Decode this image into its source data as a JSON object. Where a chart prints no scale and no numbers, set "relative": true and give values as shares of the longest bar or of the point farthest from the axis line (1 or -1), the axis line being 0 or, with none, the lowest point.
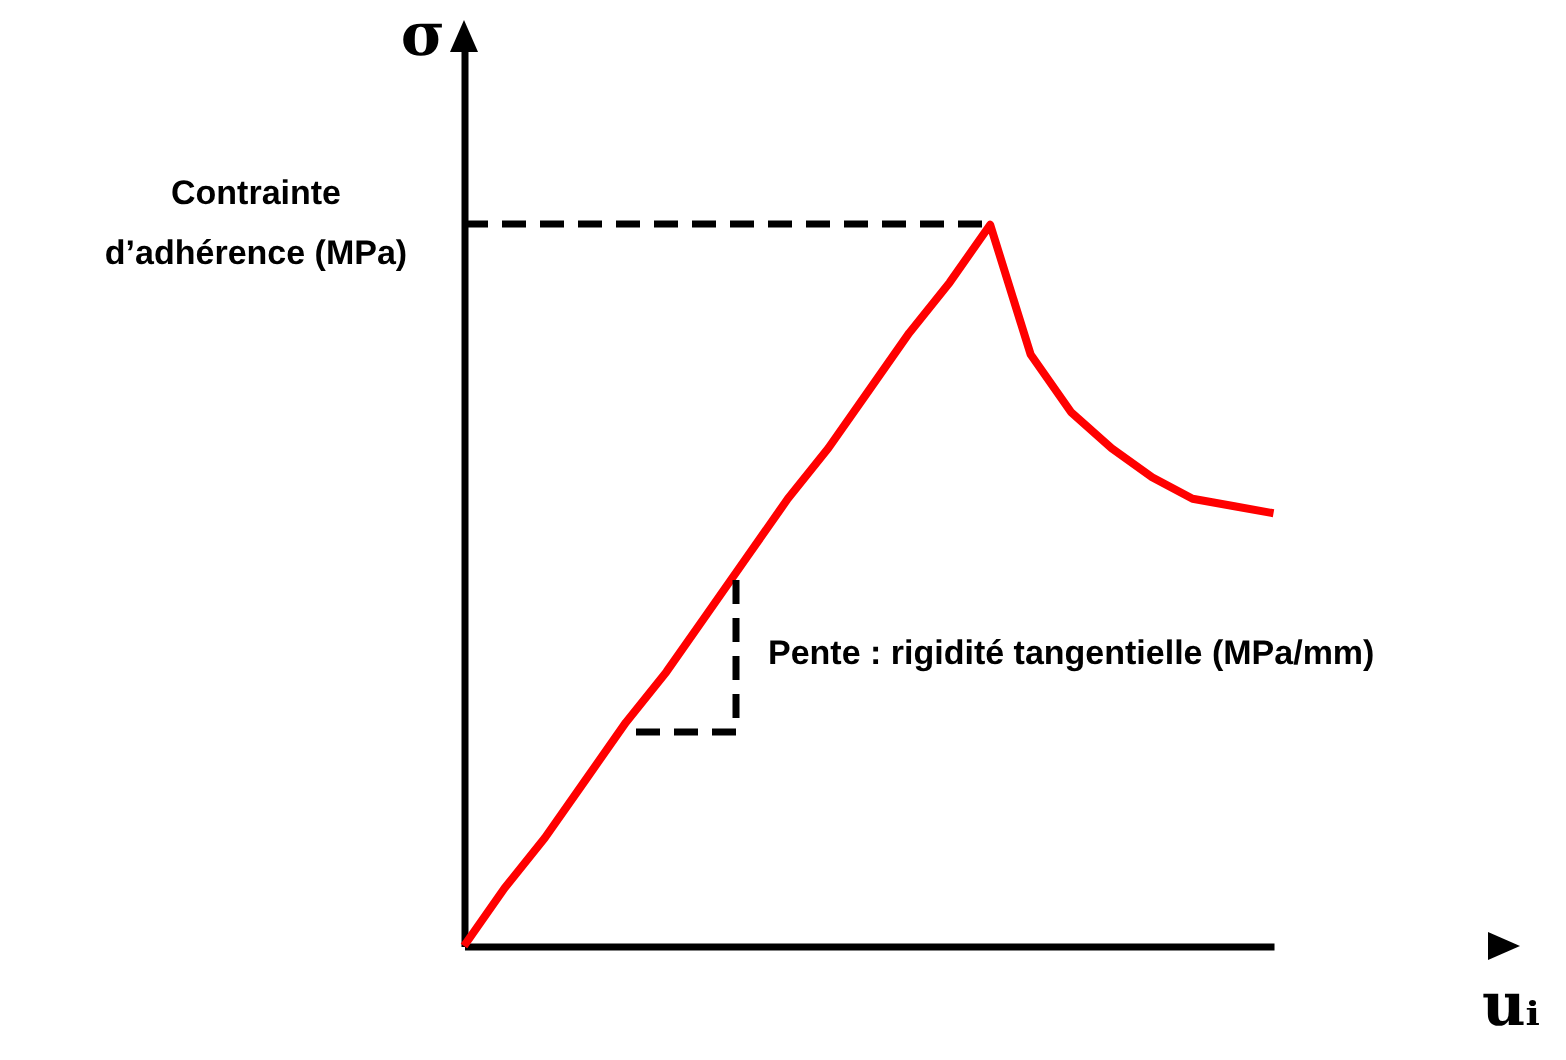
{
  "chart_data": {
    "type": "line",
    "relative": true,
    "xlabel": "uᵢ",
    "ylabel": "σ",
    "marker": "none",
    "categories": [
      null,
      null,
      null,
      null,
      null,
      null,
      null,
      null,
      null,
      null,
      null,
      null,
      null,
      null,
      null,
      null,
      null,
      null,
      null,
      null,
      null
    ],
    "series": [
      {
        "color": "#ff0000",
        "line_style": "solid",
        "values": [
          0,
          0.08,
          0.15,
          0.23,
          0.31,
          0.38,
          0.46,
          0.54,
          0.62,
          0.69,
          0.77,
          0.85,
          0.92,
          1,
          0.82,
          0.74,
          0.69,
          0.65,
          0.62,
          0.61,
          0.6
        ]
      }
    ],
    "annotations": [
      "Contrainte d’adhérence (MPa)",
      "Pente : rigidité tangentielle (MPa/mm)"
    ]
  }
}
